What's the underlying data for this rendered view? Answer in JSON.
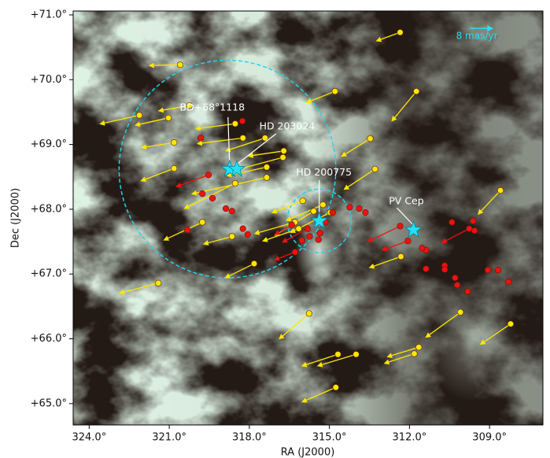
{
  "chart_data": {
    "type": "scatter",
    "xlabel": "RA (J2000)",
    "ylabel": "Dec (J2000)",
    "xlim": [
      324.6,
      307.0
    ],
    "ylim": [
      64.67,
      71.06
    ],
    "xticks": [
      {
        "value": 324,
        "label": "324.0°"
      },
      {
        "value": 321,
        "label": "321.0°"
      },
      {
        "value": 318,
        "label": "318.0°"
      },
      {
        "value": 315,
        "label": "315.0°"
      },
      {
        "value": 312,
        "label": "312.0°"
      },
      {
        "value": 309,
        "label": "309.0°"
      }
    ],
    "yticks": [
      {
        "value": 65,
        "label": "+65.0°"
      },
      {
        "value": 66,
        "label": "+66.0°"
      },
      {
        "value": 67,
        "label": "+67.0°"
      },
      {
        "value": 68,
        "label": "+68.0°"
      },
      {
        "value": 69,
        "label": "+69.0°"
      },
      {
        "value": 70,
        "label": "+70.0°"
      },
      {
        "value": 71,
        "label": "+71.0°"
      }
    ],
    "series": [
      {
        "color": "#ffe600",
        "x": [
          312.35,
          320.59,
          314.79,
          311.74,
          320.24,
          322.12,
          321.03,
          313.47,
          320.82,
          318.53,
          318.24,
          317.41,
          316.71,
          316.74,
          313.29,
          320.82,
          317.35,
          317.35,
          318.53,
          308.59,
          316.0,
          315.24,
          314.97,
          319.76,
          318.65,
          316.15,
          312.32,
          317.82,
          321.41,
          315.76,
          310.09,
          308.21,
          311.65,
          311.82,
          314.68,
          314.0,
          314.76,
          315.59,
          316.29
        ],
        "y": [
          70.73,
          70.23,
          69.82,
          69.82,
          69.6,
          69.45,
          69.41,
          69.09,
          69.03,
          69.32,
          69.1,
          69.1,
          68.9,
          68.8,
          68.62,
          68.63,
          68.65,
          68.49,
          68.4,
          68.29,
          68.13,
          68.07,
          67.95,
          67.8,
          67.58,
          67.7,
          67.27,
          67.16,
          66.86,
          66.39,
          66.41,
          66.23,
          65.87,
          65.77,
          65.76,
          65.76,
          65.25,
          67.97,
          67.8
        ],
        "x_end": [
          313.09,
          321.59,
          315.71,
          312.56,
          321.24,
          323.44,
          322.12,
          314.41,
          321.88,
          319.85,
          319.79,
          318.74,
          317.88,
          318.38,
          314.32,
          321.91,
          318.68,
          320.0,
          320.29,
          309.32,
          317.0,
          316.47,
          316.32,
          321.06,
          319.56,
          317.35,
          313.35,
          318.76,
          322.71,
          316.76,
          311.26,
          309.21,
          312.68,
          312.79,
          315.88,
          315.29,
          315.88,
          316.91,
          317.65
        ],
        "y_end": [
          70.62,
          70.22,
          69.67,
          69.41,
          69.53,
          69.33,
          69.31,
          68.85,
          68.96,
          69.25,
          69.02,
          68.92,
          68.83,
          68.62,
          68.34,
          68.46,
          68.53,
          68.25,
          68.04,
          67.97,
          67.97,
          67.85,
          67.67,
          67.55,
          67.48,
          67.53,
          67.12,
          66.97,
          66.72,
          66.04,
          66.06,
          65.95,
          65.74,
          65.64,
          65.6,
          65.6,
          65.05,
          67.63,
          67.64
        ]
      },
      {
        "color": "#ee1111",
        "x": [
          318.26,
          319.82,
          319.53,
          319.76,
          319.38,
          318.88,
          318.65,
          320.32,
          318.24,
          318.06,
          316.03,
          316.29,
          315.82,
          315.41,
          315.74,
          314.88,
          314.24,
          313.88,
          313.65,
          312.35,
          312.06,
          311.38,
          311.53,
          311.38,
          310.41,
          309.76,
          309.62,
          309.56,
          310.68,
          310.68,
          310.29,
          310.21,
          309.82,
          309.06,
          308.68,
          308.29,
          315.15,
          315.35,
          316.41
        ],
        "y": [
          69.36,
          69.1,
          68.53,
          68.24,
          68.17,
          68.01,
          67.97,
          67.68,
          67.7,
          67.61,
          67.52,
          67.34,
          67.7,
          67.53,
          67.58,
          67.95,
          68.03,
          68.01,
          67.95,
          67.74,
          67.51,
          67.37,
          67.4,
          67.08,
          67.8,
          67.7,
          67.82,
          67.67,
          67.13,
          67.07,
          66.94,
          66.83,
          66.73,
          67.06,
          67.06,
          66.88,
          67.8,
          67.63,
          67.76
        ],
        "x_end": [
          null,
          null,
          320.59,
          null,
          null,
          null,
          null,
          null,
          null,
          null,
          null,
          316.91,
          316.62,
          null,
          null,
          null,
          null,
          null,
          null,
          313.41,
          312.88,
          null,
          null,
          null,
          null,
          310.65,
          null,
          null,
          null,
          null,
          null,
          null,
          null,
          null,
          null,
          null,
          null,
          null,
          316.91
        ],
        "y_end": [
          null,
          null,
          68.37,
          null,
          null,
          null,
          null,
          null,
          null,
          null,
          null,
          67.24,
          67.52,
          null,
          null,
          null,
          null,
          null,
          null,
          67.53,
          67.39,
          null,
          null,
          null,
          null,
          67.51,
          null,
          null,
          null,
          null,
          null,
          null,
          null,
          null,
          null,
          null,
          null,
          null,
          67.64
        ]
      }
    ],
    "stars": [
      {
        "label": "BD+68°1118",
        "x": 318.74,
        "y": 68.62
      },
      {
        "label": "HD 203024",
        "x": 318.47,
        "y": 68.62
      },
      {
        "label": "HD 200775",
        "x": 315.38,
        "y": 67.82
      },
      {
        "label": "PV Cep",
        "x": 311.85,
        "y": 67.68
      }
    ],
    "star_color": "#22e0f5",
    "circles": [
      {
        "x": 318.82,
        "y": 68.62,
        "rx": 4.06,
        "ry": 1.68
      },
      {
        "x": 315.38,
        "y": 67.82,
        "rx": 1.2,
        "ry": 0.49
      }
    ],
    "circle_color": "#22d3ee",
    "scale_label": "8 mas/yr"
  }
}
